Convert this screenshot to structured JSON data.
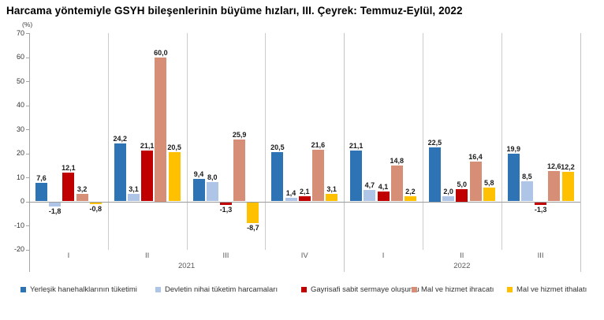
{
  "title": "Harcama yöntemiyle GSYH bileşenlerinin büyüme hızları, III. Çeyrek: Temmuz-Eylül, 2022",
  "chart_data": {
    "type": "bar",
    "title": "Harcama yöntemiyle GSYH bileşenlerinin büyüme hızları, III. Çeyrek: Temmuz-Eylül, 2022",
    "unit_label": "(%)",
    "y_axis": {
      "ticks": [
        70,
        60,
        50,
        40,
        30,
        20,
        10,
        0,
        -10,
        -20
      ],
      "min": -20,
      "max": 70,
      "grid": false
    },
    "categories": [
      "I",
      "II",
      "III",
      "IV",
      "I",
      "II",
      "III"
    ],
    "year_groups": [
      {
        "label": "2021",
        "span": 4
      },
      {
        "label": "2022",
        "span": 3
      }
    ],
    "value_label_format": "one decimal, comma separator",
    "legend_position": "bottom",
    "series": [
      {
        "name": "Yerleşik hanehalklarının tüketimi",
        "color": "#2E74B5",
        "values": [
          7.6,
          24.2,
          9.4,
          20.5,
          21.1,
          22.5,
          19.9
        ]
      },
      {
        "name": "Devletin nihai tüketim harcamaları",
        "color": "#AEC5E8",
        "values": [
          -1.8,
          3.1,
          8.0,
          1.4,
          4.7,
          2.0,
          8.5
        ]
      },
      {
        "name": "Gayrisafi sabit sermaye oluşumu",
        "color": "#C00000",
        "values": [
          12.1,
          21.1,
          -1.3,
          2.1,
          4.1,
          5.0,
          -1.3
        ]
      },
      {
        "name": "Mal ve hizmet ihracatı",
        "color": "#D78E76",
        "values": [
          3.2,
          60.0,
          25.9,
          21.6,
          14.8,
          16.4,
          12.6
        ]
      },
      {
        "name": "Mal ve hizmet ithalatı",
        "color": "#FFC000",
        "values": [
          -0.8,
          20.5,
          -8.7,
          3.1,
          2.2,
          5.8,
          12.2
        ]
      }
    ]
  }
}
